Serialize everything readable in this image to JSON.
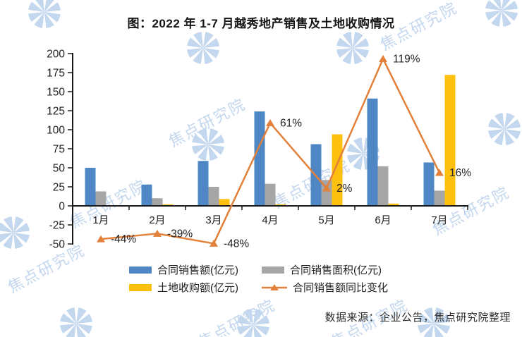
{
  "title": "图：2022 年 1-7 月越秀地产销售及土地收购情况",
  "source_note": "数据来源：企业公告，焦点研究院整理",
  "watermark": {
    "text": "焦点研究院",
    "color": "#c3d7ee"
  },
  "colors": {
    "sales_bar": "#4e87c3",
    "area_bar": "#a6a6a6",
    "land_bar": "#fdc00f",
    "yoy_line": "#e2803c",
    "axis": "#1a1a1a",
    "text": "#222222"
  },
  "chart_data": {
    "type": "combo",
    "title": "图：2022 年 1-7 月越秀地产销售及土地收购情况",
    "categories": [
      "1月",
      "2月",
      "3月",
      "4月",
      "5月",
      "6月",
      "7月"
    ],
    "series": [
      {
        "name": "合同销售额(亿元)",
        "type": "bar",
        "color": "#4e87c3",
        "values": [
          50,
          28,
          59,
          124,
          81,
          141,
          57
        ]
      },
      {
        "name": "合同销售面积(亿元)",
        "type": "bar",
        "color": "#a6a6a6",
        "values": [
          19,
          10,
          25,
          29,
          34,
          52,
          20
        ]
      },
      {
        "name": "土地收购额(亿元)",
        "type": "bar",
        "color": "#fdc00f",
        "values": [
          0,
          2,
          9,
          2,
          94,
          3,
          172
        ]
      },
      {
        "name": "合同销售额同比变化",
        "type": "line",
        "color": "#e2803c",
        "unit": "%",
        "values": [
          -44,
          -39,
          -48,
          61,
          2,
          119,
          16
        ],
        "point_labels": [
          "-44%",
          "-39%",
          "-48%",
          "61%",
          "2%",
          "119%",
          "16%"
        ]
      }
    ],
    "y_axis": {
      "min": -50,
      "max": 200,
      "step": 25,
      "tick_labels": [
        "200",
        "175",
        "150",
        "125",
        "100",
        "75",
        "50",
        "25",
        "0",
        "-25",
        "-50"
      ]
    },
    "xlabel": "",
    "ylabel": "",
    "grid": false,
    "legend_position": "bottom"
  },
  "legend": [
    {
      "label": "合同销售额(亿元)",
      "swatch": "bar",
      "color": "#4e87c3"
    },
    {
      "label": "合同销售面积(亿元)",
      "swatch": "bar",
      "color": "#a6a6a6"
    },
    {
      "label": "土地收购额(亿元)",
      "swatch": "bar",
      "color": "#fdc00f"
    },
    {
      "label": "合同销售额同比变化",
      "swatch": "line",
      "color": "#e2803c"
    }
  ]
}
